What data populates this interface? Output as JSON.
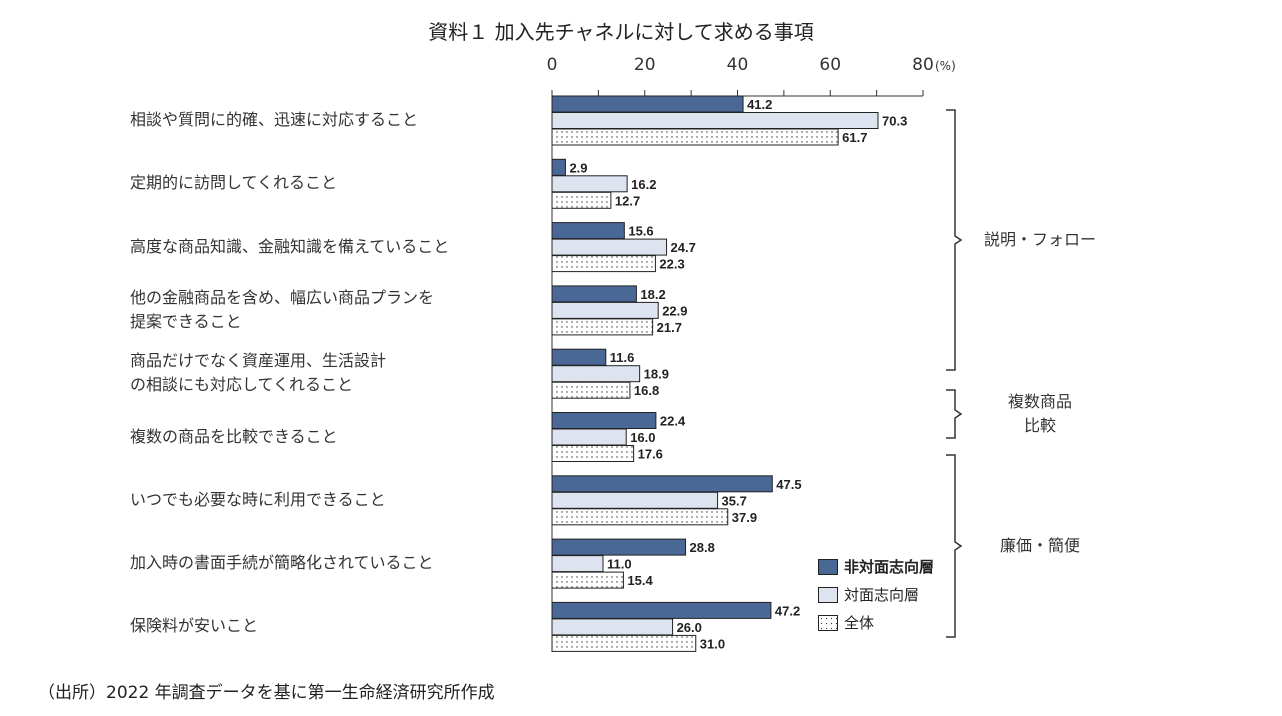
{
  "chart_data": {
    "type": "bar",
    "orientation": "horizontal",
    "title": "資料１ 加入先チャネルに対して求める事項",
    "unit_label": "(%)",
    "xlim": [
      0,
      80
    ],
    "ticks": [
      0,
      20,
      40,
      60,
      80
    ],
    "categories": [
      "相談や質問に的確、迅速に対応すること",
      "定期的に訪問してくれること",
      "高度な商品知識、金融知識を備えていること",
      "他の金融商品を含め、幅広い商品プランを\n提案できること",
      "商品だけでなく資産運用、生活設計\nの相談にも対応してくれること",
      "複数の商品を比較できること",
      "いつでも必要な時に利用できること",
      "加入時の書面手続が簡略化されていること",
      "保険料が安いこと"
    ],
    "series": [
      {
        "name": "非対面志向層",
        "color": "#4a6896",
        "values": [
          41.2,
          2.9,
          15.6,
          18.2,
          11.6,
          22.4,
          47.5,
          28.8,
          47.2
        ]
      },
      {
        "name": "対面志向層",
        "color": "#dde4ef",
        "values": [
          70.3,
          16.2,
          24.7,
          22.9,
          18.9,
          16.0,
          35.7,
          11.0,
          26.0
        ]
      },
      {
        "name": "全体",
        "color": "dotted",
        "values": [
          61.7,
          12.7,
          22.3,
          21.7,
          16.8,
          17.6,
          37.9,
          15.4,
          31.0
        ]
      }
    ],
    "groups": [
      {
        "label": "説明・フォロー",
        "from": 0,
        "to": 4
      },
      {
        "label": "複数商品\n比較",
        "from": 5,
        "to": 5
      },
      {
        "label": "廉価・簡便",
        "from": 6,
        "to": 8
      }
    ],
    "legend_position": "bottom-right"
  },
  "source": "（出所）2022 年調査データを基に第一生命経済研究所作成"
}
